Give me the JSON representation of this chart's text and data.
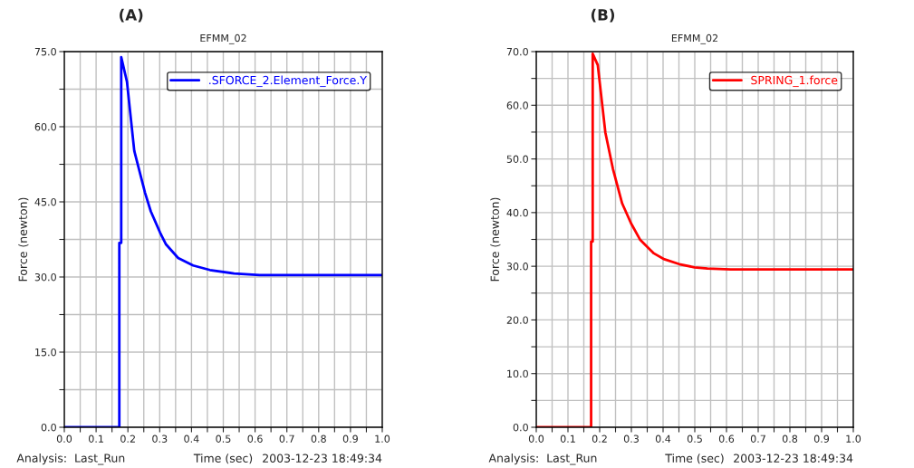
{
  "chart_data": [
    {
      "type": "line",
      "title": "(A)",
      "subtitle": "EFMM_02",
      "xlabel": "Time (sec)",
      "ylabel": "Force (newton)",
      "annotations": [
        "Analysis:  Last_Run",
        "2003-12-23 18:49:34"
      ],
      "series": [
        {
          "name": ".SFORCE_2.Element_Force.Y",
          "color": "#0000ff",
          "x": [
            0,
            0.173,
            0.173,
            0.179,
            0.179,
            0.197,
            0.22,
            0.254,
            0.272,
            0.301,
            0.32,
            0.358,
            0.405,
            0.458,
            0.534,
            0.614,
            1.0
          ],
          "values": [
            0,
            0,
            36.8,
            36.8,
            73.9,
            69.0,
            55.2,
            46.8,
            43.1,
            38.9,
            36.5,
            33.8,
            32.3,
            31.4,
            30.7,
            30.4,
            30.4
          ]
        }
      ],
      "xlim": [
        0,
        1
      ],
      "ylim": [
        0,
        75
      ],
      "xticks": [
        {
          "value": 0,
          "label": "0.0"
        },
        {
          "value": 0.05,
          "label": null
        },
        {
          "value": 0.1,
          "label": "0.1"
        },
        {
          "value": 0.15,
          "label": null
        },
        {
          "value": 0.2,
          "label": "0.2"
        },
        {
          "value": 0.25,
          "label": null
        },
        {
          "value": 0.3,
          "label": "0.3"
        },
        {
          "value": 0.35,
          "label": null
        },
        {
          "value": 0.4,
          "label": "0.4"
        },
        {
          "value": 0.45,
          "label": null
        },
        {
          "value": 0.5,
          "label": "0.5"
        },
        {
          "value": 0.55,
          "label": null
        },
        {
          "value": 0.6,
          "label": "0.6"
        },
        {
          "value": 0.65,
          "label": null
        },
        {
          "value": 0.7,
          "label": "0.7"
        },
        {
          "value": 0.75,
          "label": null
        },
        {
          "value": 0.8,
          "label": "0.8"
        },
        {
          "value": 0.85,
          "label": null
        },
        {
          "value": 0.9,
          "label": "0.9"
        },
        {
          "value": 0.95,
          "label": null
        },
        {
          "value": 1,
          "label": "1.0"
        }
      ],
      "yticks": [
        {
          "value": 0,
          "label": "0.0"
        },
        {
          "value": 7.5,
          "label": null
        },
        {
          "value": 15,
          "label": "15.0"
        },
        {
          "value": 22.5,
          "label": null
        },
        {
          "value": 30,
          "label": "30.0"
        },
        {
          "value": 37.5,
          "label": null
        },
        {
          "value": 45,
          "label": "45.0"
        },
        {
          "value": 52.5,
          "label": null
        },
        {
          "value": 60,
          "label": "60.0"
        },
        {
          "value": 67.5,
          "label": null
        },
        {
          "value": 75,
          "label": "75.0"
        }
      ],
      "grid": true,
      "legend": "top right"
    },
    {
      "type": "line",
      "title": "(B)",
      "subtitle": "EFMM_02",
      "xlabel": "Time (sec)",
      "ylabel": "Force (newton)",
      "annotations": [
        "Analysis:  Last_Run",
        "2003-12-23 18:49:34"
      ],
      "series": [
        {
          "name": "SPRING_1.force",
          "color": "#ff0000",
          "x": [
            0,
            0.173,
            0.173,
            0.178,
            0.178,
            0.194,
            0.218,
            0.242,
            0.271,
            0.299,
            0.328,
            0.371,
            0.404,
            0.451,
            0.499,
            0.54,
            0.613,
            1.0
          ],
          "values": [
            0,
            0,
            34.6,
            34.6,
            69.6,
            67.5,
            54.9,
            48.1,
            41.7,
            38.0,
            34.9,
            32.4,
            31.3,
            30.4,
            29.8,
            29.6,
            29.4,
            29.4
          ]
        }
      ],
      "xlim": [
        0,
        1
      ],
      "ylim": [
        0,
        70
      ],
      "xticks": [
        {
          "value": 0,
          "label": "0.0"
        },
        {
          "value": 0.05,
          "label": null
        },
        {
          "value": 0.1,
          "label": "0.1"
        },
        {
          "value": 0.15,
          "label": null
        },
        {
          "value": 0.2,
          "label": "0.2"
        },
        {
          "value": 0.25,
          "label": null
        },
        {
          "value": 0.3,
          "label": "0.3"
        },
        {
          "value": 0.35,
          "label": null
        },
        {
          "value": 0.4,
          "label": "0.4"
        },
        {
          "value": 0.45,
          "label": null
        },
        {
          "value": 0.5,
          "label": "0.5"
        },
        {
          "value": 0.55,
          "label": null
        },
        {
          "value": 0.6,
          "label": "0.6"
        },
        {
          "value": 0.65,
          "label": null
        },
        {
          "value": 0.7,
          "label": "0.7"
        },
        {
          "value": 0.75,
          "label": null
        },
        {
          "value": 0.8,
          "label": "0.8"
        },
        {
          "value": 0.85,
          "label": null
        },
        {
          "value": 0.9,
          "label": "0.9"
        },
        {
          "value": 0.95,
          "label": null
        },
        {
          "value": 1,
          "label": "1.0"
        }
      ],
      "yticks": [
        {
          "value": 0,
          "label": "0.0"
        },
        {
          "value": 5,
          "label": null
        },
        {
          "value": 10,
          "label": "10.0"
        },
        {
          "value": 15,
          "label": null
        },
        {
          "value": 20,
          "label": "20.0"
        },
        {
          "value": 25,
          "label": null
        },
        {
          "value": 30,
          "label": "30.0"
        },
        {
          "value": 35,
          "label": null
        },
        {
          "value": 40,
          "label": "40.0"
        },
        {
          "value": 45,
          "label": null
        },
        {
          "value": 50,
          "label": "50.0"
        },
        {
          "value": 55,
          "label": null
        },
        {
          "value": 60,
          "label": "60.0"
        },
        {
          "value": 65,
          "label": null
        },
        {
          "value": 70,
          "label": "70.0"
        }
      ],
      "grid": true,
      "legend": "top right"
    }
  ]
}
